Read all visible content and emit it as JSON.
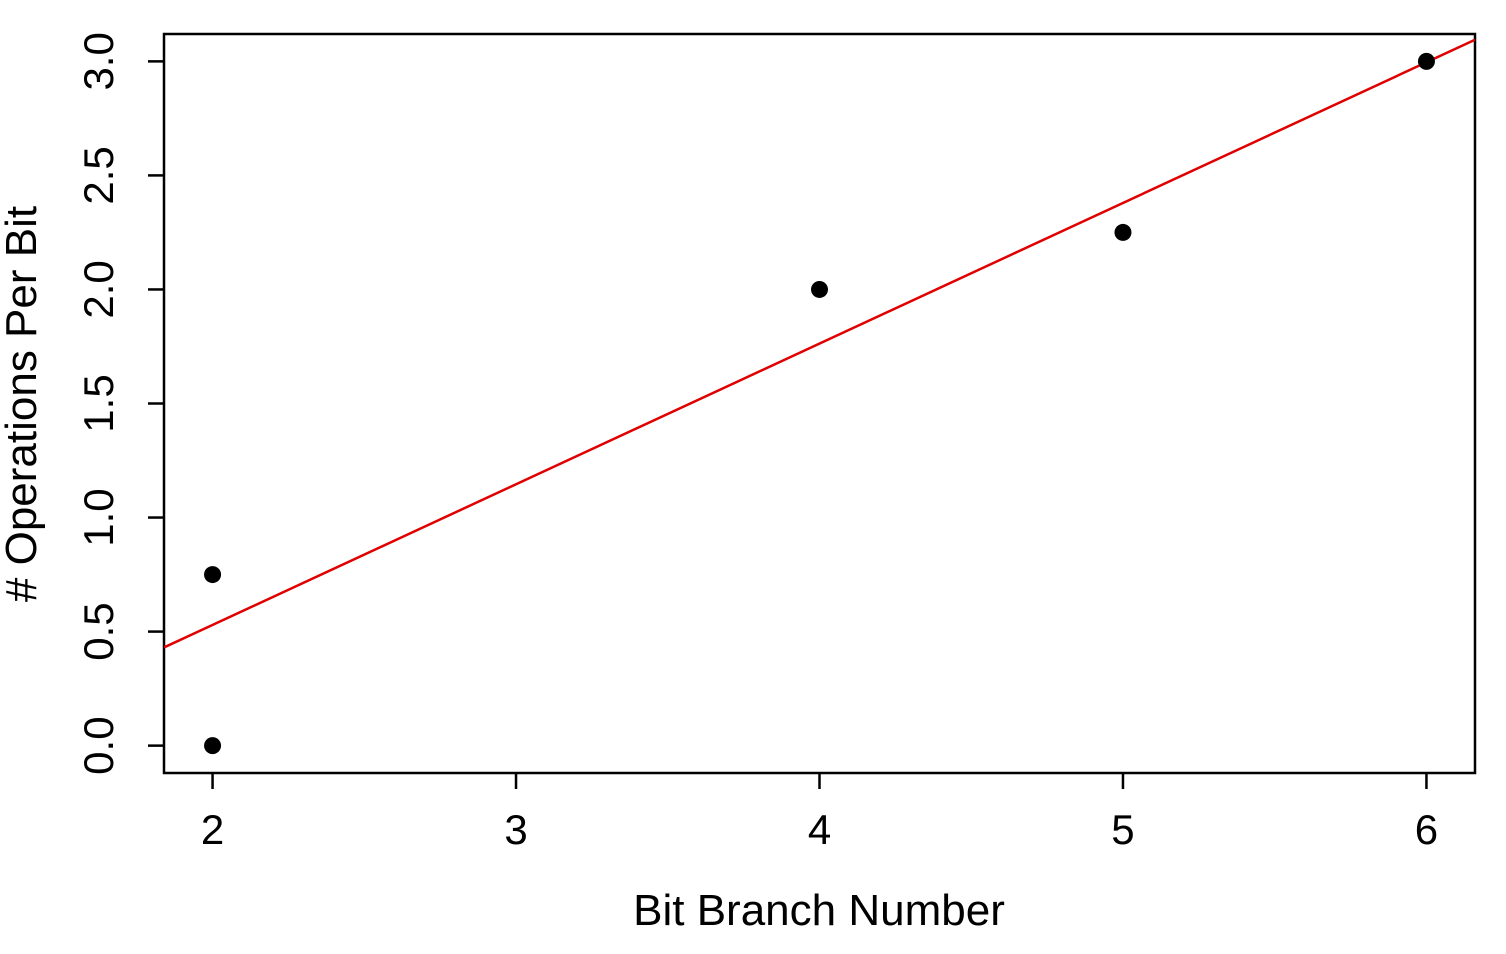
{
  "chart_data": {
    "type": "scatter",
    "title": "",
    "xlabel": "Bit Branch Number",
    "ylabel": "# Operations Per Bit",
    "xlim": [
      1.84,
      6.16
    ],
    "ylim": [
      -0.12,
      3.12
    ],
    "x_ticks": [
      2,
      3,
      4,
      5,
      6
    ],
    "y_ticks": [
      0.0,
      0.5,
      1.0,
      1.5,
      2.0,
      2.5,
      3.0
    ],
    "x_tick_labels": [
      "2",
      "3",
      "4",
      "5",
      "6"
    ],
    "y_tick_labels": [
      "0.0",
      "0.5",
      "1.0",
      "1.5",
      "2.0",
      "2.5",
      "3.0"
    ],
    "grid": false,
    "series": [
      {
        "type": "scatter",
        "color": "#000000",
        "points": [
          {
            "x": 2,
            "y": 0.0
          },
          {
            "x": 2,
            "y": 0.75
          },
          {
            "x": 4,
            "y": 2.0
          },
          {
            "x": 5,
            "y": 2.25
          },
          {
            "x": 6,
            "y": 3.0
          }
        ]
      },
      {
        "type": "line",
        "color": "#e00000",
        "fit": "linear",
        "slope": 0.6167,
        "intercept": -0.7042
      }
    ]
  }
}
